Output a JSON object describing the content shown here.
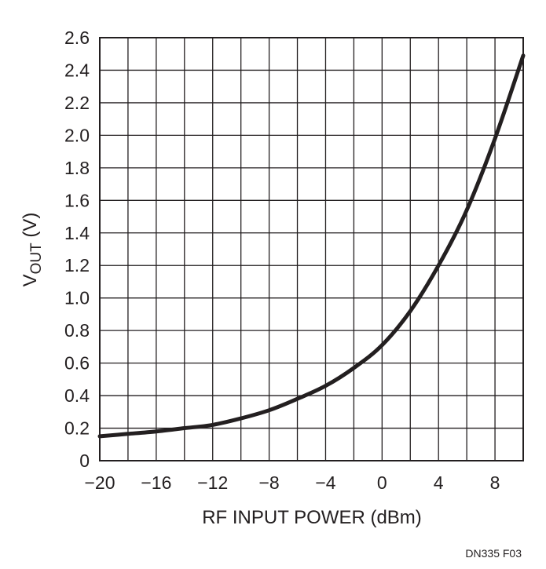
{
  "chart_data": {
    "type": "line",
    "xlabel": "RF INPUT POWER (dBm)",
    "ylabel_main": "V",
    "ylabel_subscript": "OUT",
    "ylabel_unit": " (V)",
    "xlim": [
      -20,
      10
    ],
    "ylim": [
      0,
      2.6
    ],
    "x_grid_step": 2,
    "y_grid_step": 0.2,
    "grid": true,
    "x_ticks": [
      -20,
      -16,
      -12,
      -8,
      -4,
      0,
      4,
      8
    ],
    "x_tick_labels": [
      "−20",
      "−16",
      "−12",
      "−8",
      "−4",
      "0",
      "4",
      "8"
    ],
    "y_ticks": [
      0,
      0.2,
      0.4,
      0.6,
      0.8,
      1.0,
      1.2,
      1.4,
      1.6,
      1.8,
      2.0,
      2.2,
      2.4,
      2.6
    ],
    "y_tick_labels": [
      "0",
      "0.2",
      "0.4",
      "0.6",
      "0.8",
      "1.0",
      "1.2",
      "1.4",
      "1.6",
      "1.8",
      "2.0",
      "2.2",
      "2.4",
      "2.6"
    ],
    "series": [
      {
        "color": "#231f20",
        "x": [
          -20,
          -18,
          -16,
          -14,
          -12,
          -10,
          -8,
          -6,
          -4,
          -2,
          0,
          2,
          4,
          6,
          8,
          10
        ],
        "y": [
          0.15,
          0.165,
          0.18,
          0.2,
          0.22,
          0.26,
          0.31,
          0.38,
          0.46,
          0.57,
          0.71,
          0.92,
          1.2,
          1.54,
          1.98,
          2.49
        ]
      }
    ]
  },
  "figure_id": "DN335 F03"
}
